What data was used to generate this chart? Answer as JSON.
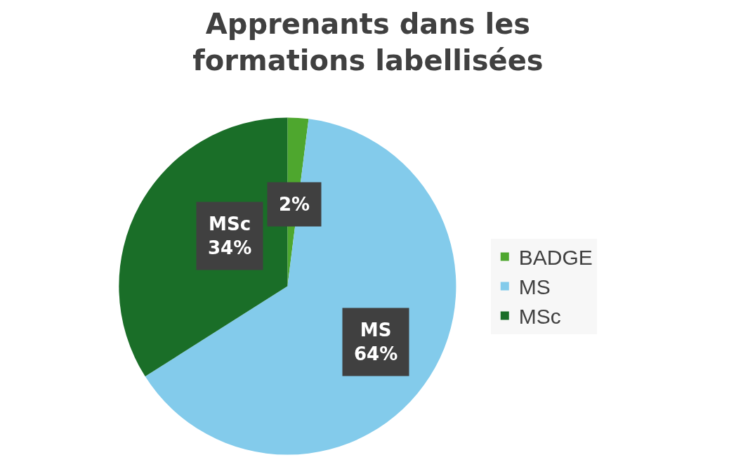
{
  "chart_data": {
    "type": "pie",
    "title": "Apprenants dans les\nformations labellisées",
    "categories": [
      "BADGE",
      "MS",
      "MSc"
    ],
    "values": [
      2,
      64,
      34
    ],
    "colors": [
      "#4ea72e",
      "#83cbeb",
      "#1a6e28"
    ],
    "value_labels": [
      "2%",
      "MS\n64%",
      "MSc\n34%"
    ],
    "legend": "right"
  }
}
